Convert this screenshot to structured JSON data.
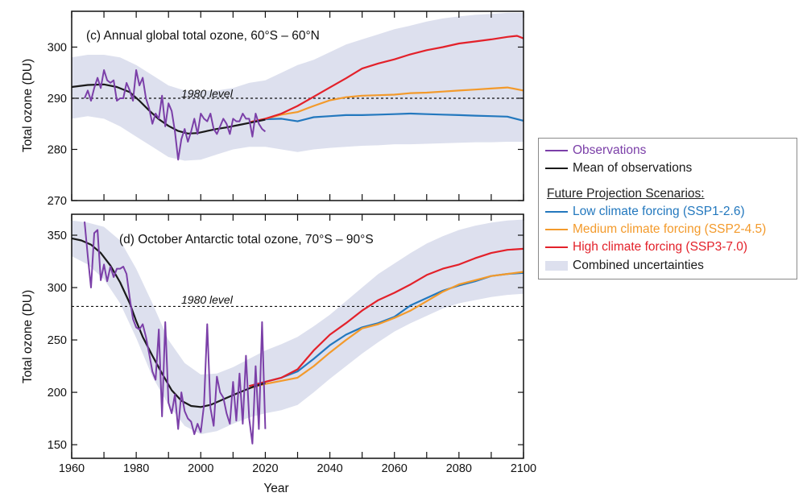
{
  "chart_data": [
    {
      "type": "line",
      "panel_title": "(c) Annual global total ozone, 60°S – 60°N",
      "ylabel": "Total ozone (DU)",
      "xlim": [
        1960,
        2100
      ],
      "ylim": [
        270,
        307
      ],
      "yticks": [
        270,
        280,
        290,
        300
      ],
      "reference_line": {
        "label": "1980 level",
        "value": 290
      },
      "series": [
        {
          "name": "Observations",
          "color": "#7b3fa8",
          "x": [
            1964,
            1965,
            1966,
            1967,
            1968,
            1969,
            1970,
            1971,
            1972,
            1973,
            1974,
            1975,
            1976,
            1977,
            1978,
            1979,
            1980,
            1981,
            1982,
            1983,
            1984,
            1985,
            1986,
            1987,
            1988,
            1989,
            1990,
            1991,
            1992,
            1993,
            1994,
            1995,
            1996,
            1997,
            1998,
            1999,
            2000,
            2001,
            2002,
            2003,
            2004,
            2005,
            2006,
            2007,
            2008,
            2009,
            2010,
            2011,
            2012,
            2013,
            2014,
            2015,
            2016,
            2017,
            2018,
            2019,
            2020
          ],
          "y": [
            290,
            291.5,
            289.5,
            292,
            294,
            292,
            295.5,
            293.5,
            293,
            293.5,
            289.5,
            290,
            290,
            293,
            291.5,
            289.5,
            295.5,
            292.5,
            294,
            290,
            288,
            285,
            287,
            286,
            290.5,
            284.5,
            289,
            287.5,
            283.5,
            278,
            282,
            284,
            281.5,
            283.5,
            286,
            283,
            287,
            286,
            285.5,
            287,
            284,
            283,
            284.5,
            286,
            285,
            283,
            286,
            285.5,
            285.5,
            287,
            286,
            286,
            282.5,
            287,
            285,
            284,
            283.5
          ]
        },
        {
          "name": "Mean of observations",
          "color": "#1a1a1a",
          "x": [
            1960,
            1965,
            1970,
            1974,
            1978,
            1981,
            1984,
            1987,
            1990,
            1993,
            1996,
            1999,
            2002,
            2005,
            2008,
            2012,
            2016,
            2020
          ],
          "y": [
            292.2,
            292.6,
            292.7,
            292.2,
            291.2,
            289.5,
            287.6,
            285.9,
            284.6,
            283.6,
            283.1,
            283.2,
            283.6,
            284,
            284.3,
            284.8,
            285.3,
            285.8
          ]
        },
        {
          "name": "Low climate forcing (SSP1-2.6)",
          "color": "#2378be",
          "x": [
            2020,
            2025,
            2030,
            2035,
            2040,
            2045,
            2050,
            2055,
            2060,
            2065,
            2070,
            2075,
            2080,
            2085,
            2090,
            2095,
            2100
          ],
          "y": [
            285.9,
            286,
            285.5,
            286.3,
            286.5,
            286.7,
            286.7,
            286.8,
            286.9,
            287,
            286.9,
            286.8,
            286.7,
            286.6,
            286.5,
            286.4,
            285.6
          ]
        },
        {
          "name": "Medium climate forcing (SSP2-4.5)",
          "color": "#f39a2b",
          "x": [
            2015,
            2020,
            2025,
            2030,
            2035,
            2040,
            2045,
            2050,
            2055,
            2060,
            2065,
            2070,
            2075,
            2080,
            2085,
            2090,
            2095,
            2100
          ],
          "y": [
            285.3,
            286,
            286.8,
            287.3,
            288.5,
            289.6,
            290.2,
            290.5,
            290.6,
            290.7,
            291,
            291.1,
            291.3,
            291.5,
            291.7,
            291.9,
            292.1,
            291.5
          ]
        },
        {
          "name": "High climate forcing (SSP3-7.0)",
          "color": "#e3212a",
          "x": [
            2015,
            2020,
            2025,
            2030,
            2035,
            2040,
            2045,
            2050,
            2055,
            2060,
            2065,
            2070,
            2075,
            2080,
            2085,
            2090,
            2095,
            2098,
            2100
          ],
          "y": [
            285.3,
            286,
            287,
            288.5,
            290.3,
            292.1,
            293.9,
            295.8,
            296.8,
            297.6,
            298.6,
            299.4,
            300,
            300.7,
            301.1,
            301.5,
            302,
            302.2,
            301.7
          ]
        },
        {
          "name": "Combined uncertainties",
          "color": "#dde0ee",
          "x": [
            1960,
            1965,
            1970,
            1975,
            1980,
            1985,
            1990,
            1995,
            2000,
            2005,
            2010,
            2015,
            2020,
            2025,
            2030,
            2035,
            2040,
            2045,
            2050,
            2055,
            2060,
            2065,
            2070,
            2075,
            2080,
            2085,
            2090,
            2095,
            2100
          ],
          "y_low": [
            286,
            286.5,
            286,
            284.5,
            282.5,
            280.5,
            278.5,
            277.8,
            278,
            279,
            280,
            280.5,
            280.5,
            280,
            279.5,
            280,
            280.3,
            280.5,
            280.7,
            280.8,
            281,
            281,
            281.1,
            281.2,
            281.3,
            281.4,
            281.4,
            281.5,
            281.5
          ],
          "y_high": [
            298,
            298.5,
            298.5,
            298,
            296.5,
            294.5,
            292.5,
            291.5,
            291.5,
            291.5,
            292,
            293,
            293.5,
            295,
            296.5,
            297.5,
            299,
            300.5,
            301.5,
            302.5,
            303.5,
            304.2,
            305,
            305.6,
            306,
            306.3,
            306.5,
            306.7,
            306.7
          ]
        }
      ]
    },
    {
      "type": "line",
      "panel_title": "(d) October Antarctic total ozone, 70°S – 90°S",
      "ylabel": "Total ozone (DU)",
      "xlabel": "Year",
      "xlim": [
        1960,
        2100
      ],
      "ylim": [
        137,
        370
      ],
      "xticks": [
        1960,
        1980,
        2000,
        2020,
        2040,
        2060,
        2080,
        2100
      ],
      "yticks": [
        150,
        200,
        250,
        300,
        350
      ],
      "reference_line": {
        "label": "1980 level",
        "value": 282
      },
      "series": [
        {
          "name": "Observations",
          "color": "#7b3fa8",
          "x": [
            1964,
            1965,
            1966,
            1967,
            1968,
            1969,
            1970,
            1971,
            1972,
            1973,
            1974,
            1975,
            1976,
            1977,
            1978,
            1979,
            1980,
            1981,
            1982,
            1983,
            1984,
            1985,
            1986,
            1987,
            1988,
            1989,
            1990,
            1991,
            1992,
            1993,
            1994,
            1995,
            1996,
            1997,
            1998,
            1999,
            2000,
            2001,
            2002,
            2003,
            2004,
            2005,
            2006,
            2007,
            2008,
            2009,
            2010,
            2011,
            2012,
            2013,
            2014,
            2015,
            2016,
            2017,
            2018,
            2019,
            2020
          ],
          "y": [
            363,
            330,
            300,
            352,
            355,
            307,
            322,
            306,
            320,
            310,
            318,
            318,
            320,
            313,
            290,
            270,
            262,
            260,
            265,
            253,
            237,
            220,
            212,
            260,
            177,
            267,
            190,
            180,
            198,
            165,
            200,
            182,
            175,
            172,
            160,
            170,
            162,
            188,
            265,
            185,
            168,
            215,
            200,
            195,
            180,
            170,
            210,
            173,
            218,
            170,
            235,
            175,
            151,
            225,
            165,
            267,
            165
          ]
        },
        {
          "name": "Mean of observations",
          "color": "#1a1a1a",
          "x": [
            1960,
            1963,
            1966,
            1969,
            1972,
            1975,
            1978,
            1980,
            1982,
            1985,
            1988,
            1991,
            1994,
            1997,
            2000,
            2003,
            2006,
            2009,
            2012,
            2016,
            2020
          ],
          "y": [
            347,
            345,
            341,
            333,
            321,
            305,
            285,
            268,
            253,
            235,
            218,
            202,
            192,
            187,
            186,
            188,
            192,
            196,
            200,
            205,
            209
          ]
        },
        {
          "name": "Low climate forcing (SSP1-2.6)",
          "color": "#2378be",
          "x": [
            2015,
            2020,
            2025,
            2030,
            2035,
            2040,
            2045,
            2050,
            2055,
            2060,
            2065,
            2070,
            2075,
            2080,
            2085,
            2090,
            2095,
            2100
          ],
          "y": [
            206,
            210,
            214,
            220,
            232,
            245,
            255,
            262,
            266,
            272,
            283,
            290,
            297,
            302,
            306,
            311,
            313,
            314
          ]
        },
        {
          "name": "Medium climate forcing (SSP2-4.5)",
          "color": "#f39a2b",
          "x": [
            2015,
            2020,
            2025,
            2030,
            2035,
            2040,
            2045,
            2050,
            2055,
            2060,
            2065,
            2070,
            2075,
            2080,
            2085,
            2090,
            2095,
            2100
          ],
          "y": [
            204,
            208,
            211,
            214,
            225,
            238,
            250,
            261,
            265,
            271,
            278,
            287,
            296,
            303,
            307,
            311,
            313,
            315
          ]
        },
        {
          "name": "High climate forcing (SSP3-7.0)",
          "color": "#e3212a",
          "x": [
            2015,
            2020,
            2025,
            2030,
            2035,
            2040,
            2045,
            2050,
            2055,
            2060,
            2065,
            2070,
            2075,
            2080,
            2085,
            2090,
            2095,
            2100
          ],
          "y": [
            206,
            210,
            214,
            222,
            240,
            255,
            266,
            278,
            288,
            295,
            303,
            312,
            318,
            322,
            328,
            333,
            336,
            337
          ]
        },
        {
          "name": "Combined uncertainties",
          "color": "#dde0ee",
          "x": [
            1960,
            1965,
            1970,
            1975,
            1980,
            1985,
            1990,
            1995,
            2000,
            2005,
            2010,
            2015,
            2020,
            2025,
            2030,
            2035,
            2040,
            2045,
            2050,
            2055,
            2060,
            2065,
            2070,
            2075,
            2080,
            2085,
            2090,
            2095,
            2100
          ],
          "y_low": [
            330,
            322,
            308,
            285,
            252,
            215,
            188,
            168,
            160,
            163,
            170,
            176,
            180,
            183,
            188,
            200,
            213,
            225,
            237,
            248,
            258,
            266,
            273,
            280,
            285,
            288,
            291,
            293,
            294
          ],
          "y_high": [
            364,
            362,
            358,
            345,
            318,
            285,
            250,
            228,
            217,
            218,
            224,
            232,
            240,
            246,
            253,
            263,
            274,
            287,
            300,
            313,
            323,
            333,
            342,
            349,
            355,
            359,
            362,
            364,
            365
          ]
        }
      ]
    }
  ]
}
